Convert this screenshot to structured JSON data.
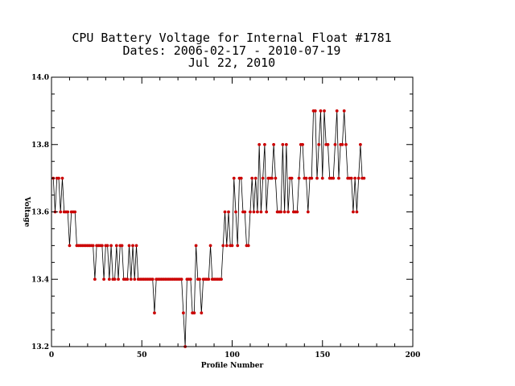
{
  "chart_data": {
    "type": "line",
    "title_lines": [
      "CPU Battery Voltage for Internal Float #1781",
      "Dates:  2006-02-17 -  2010-07-19",
      "Jul 22, 2010"
    ],
    "xlabel": "Profile Number",
    "ylabel": "Voltage",
    "xlim": [
      0,
      200
    ],
    "ylim": [
      13.2,
      14.0
    ],
    "x_ticks": [
      0,
      50,
      100,
      150,
      200
    ],
    "y_ticks": [
      13.2,
      13.4,
      13.6,
      13.8,
      14.0
    ],
    "x_tick_labels": [
      "0",
      "50",
      "100",
      "150",
      "200"
    ],
    "y_tick_labels": [
      "13.2",
      "13.4",
      "13.6",
      "13.8",
      "14.0"
    ],
    "line_color": "#000000",
    "marker_color": "#cc0000",
    "grid": false,
    "y": [
      13.7,
      13.6,
      13.7,
      13.7,
      13.6,
      13.7,
      13.6,
      13.6,
      13.6,
      13.5,
      13.6,
      13.6,
      13.6,
      13.5,
      13.5,
      13.5,
      13.5,
      13.5,
      13.5,
      13.5,
      13.5,
      13.5,
      13.5,
      13.4,
      13.5,
      13.5,
      13.5,
      13.5,
      13.4,
      13.5,
      13.5,
      13.4,
      13.5,
      13.4,
      13.4,
      13.5,
      13.4,
      13.5,
      13.5,
      13.4,
      13.4,
      13.4,
      13.5,
      13.4,
      13.5,
      13.4,
      13.5,
      13.4,
      13.4,
      13.4,
      13.4,
      13.4,
      13.4,
      13.4,
      13.4,
      13.4,
      13.3,
      13.4,
      13.4,
      13.4,
      13.4,
      13.4,
      13.4,
      13.4,
      13.4,
      13.4,
      13.4,
      13.4,
      13.4,
      13.4,
      13.4,
      13.4,
      13.3,
      13.2,
      13.4,
      13.4,
      13.4,
      13.3,
      13.3,
      13.5,
      13.4,
      13.4,
      13.3,
      13.4,
      13.4,
      13.4,
      13.4,
      13.5,
      13.4,
      13.4,
      13.4,
      13.4,
      13.4,
      13.4,
      13.5,
      13.6,
      13.5,
      13.6,
      13.5,
      13.5,
      13.7,
      13.6,
      13.5,
      13.7,
      13.7,
      13.6,
      13.6,
      13.5,
      13.5,
      13.6,
      13.7,
      13.6,
      13.7,
      13.6,
      13.8,
      13.6,
      13.7,
      13.8,
      13.6,
      13.7,
      13.7,
      13.7,
      13.8,
      13.7,
      13.6,
      13.6,
      13.6,
      13.8,
      13.6,
      13.8,
      13.6,
      13.7,
      13.7,
      13.6,
      13.6,
      13.6,
      13.7,
      13.8,
      13.8,
      13.7,
      13.7,
      13.6,
      13.7,
      13.7,
      13.9,
      13.9,
      13.7,
      13.8,
      13.9,
      13.7,
      13.9,
      13.8,
      13.8,
      13.7,
      13.7,
      13.7,
      13.8,
      13.9,
      13.7,
      13.8,
      13.8,
      13.9,
      13.8,
      13.7,
      13.7,
      13.7,
      13.6,
      13.7,
      13.6,
      13.7,
      13.8,
      13.7,
      13.7
    ]
  }
}
